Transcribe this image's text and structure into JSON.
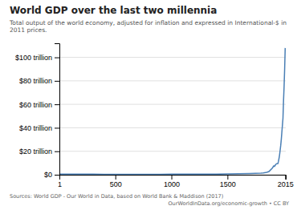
{
  "chart_data": {
    "type": "line",
    "title": "World GDP over the last two millennia",
    "subtitle": "Total output of the world economy, adjusted for inflation and expressed in International-$ in 2011 prices.",
    "annotations": [
      "Sources: World GDP - Our World in Data, based on World Bank & Maddison (2017)",
      "OurWorldInData.org/economic-growth • CC BY"
    ],
    "x": [
      1,
      100,
      200,
      300,
      400,
      500,
      600,
      700,
      800,
      900,
      1000,
      1100,
      1200,
      1300,
      1400,
      1500,
      1600,
      1700,
      1750,
      1800,
      1820,
      1850,
      1870,
      1900,
      1913,
      1920,
      1930,
      1940,
      1950,
      1955,
      1960,
      1965,
      1970,
      1975,
      1980,
      1985,
      1990,
      1995,
      2000,
      2005,
      2010,
      2015
    ],
    "values": [
      440000000000,
      430000000000,
      430000000000,
      430000000000,
      420000000000,
      420000000000,
      420000000000,
      410000000000,
      410000000000,
      420000000000,
      450000000000,
      470000000000,
      490000000000,
      460000000000,
      430000000000,
      700000000000,
      800000000000,
      1100000000000,
      1250000000000,
      1450000000000,
      1600000000000,
      2100000000000,
      2700000000000,
      5700000000000,
      7500000000000,
      7200000000000,
      8700000000000,
      9400000000000,
      9500000000000,
      11500000000000,
      14000000000000,
      17000000000000,
      21000000000000,
      25000000000000,
      30000000000000,
      36000000000000,
      42000000000000,
      48000000000000,
      63000000000000,
      75000000000000,
      90000000000000,
      108000000000000
    ],
    "color": "#4a7fb5",
    "xlim": [
      1,
      2020
    ],
    "xticks": [
      1,
      500,
      1000,
      1500,
      2015
    ],
    "ylim": [
      0,
      112000000000000
    ],
    "yticks": [
      {
        "value": 0,
        "label": "$0"
      },
      {
        "value": 20000000000000,
        "label": "$20 trillion"
      },
      {
        "value": 40000000000000,
        "label": "$40 trillion"
      },
      {
        "value": 60000000000000,
        "label": "$60 trillion"
      },
      {
        "value": 80000000000000,
        "label": "$80 trillion"
      },
      {
        "value": 100000000000000,
        "label": "$100 trillion"
      }
    ],
    "grid": true
  }
}
